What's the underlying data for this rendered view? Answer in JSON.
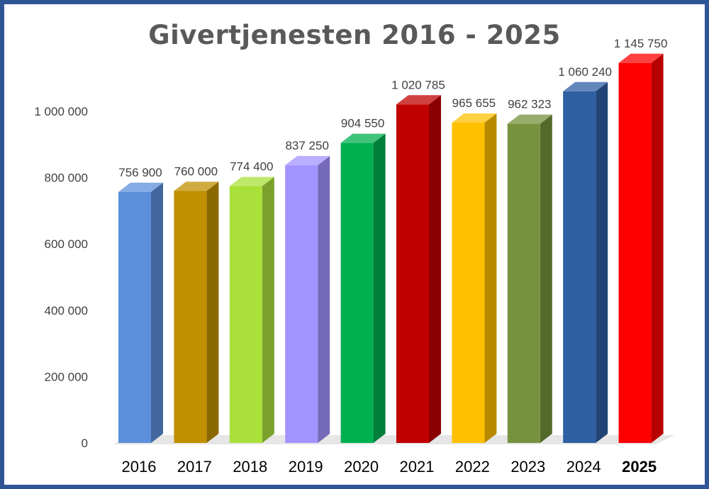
{
  "chart_data": {
    "type": "bar",
    "title": "Givertjenesten 2016 - 2025",
    "xlabel": "",
    "ylabel": "",
    "categories": [
      "2016",
      "2017",
      "2018",
      "2019",
      "2020",
      "2021",
      "2022",
      "2023",
      "2024",
      "2025"
    ],
    "values": [
      756900,
      760000,
      774400,
      837250,
      904550,
      1020785,
      965655,
      962323,
      1060240,
      1145750
    ],
    "data_labels": [
      "756 900",
      "760 000",
      "774 400",
      "837 250",
      "904 550",
      "1 020 785",
      "965 655",
      "962 323",
      "1 060 240",
      "1 145 750"
    ],
    "ylim": [
      0,
      1000000
    ],
    "y_ticks": [
      0,
      200000,
      400000,
      600000,
      800000,
      1000000
    ],
    "y_tick_labels": [
      "0",
      "200 000",
      "400 000",
      "600 000",
      "800 000",
      "1 000 000"
    ],
    "bold_category": "2025",
    "grid": false,
    "legend": "none",
    "colors": [
      "#5b8fd9",
      "#c09000",
      "#a9e03a",
      "#a393ff",
      "#00b050",
      "#c00000",
      "#ffc000",
      "#76923c",
      "#2e5fa3",
      "#ff0000"
    ]
  }
}
